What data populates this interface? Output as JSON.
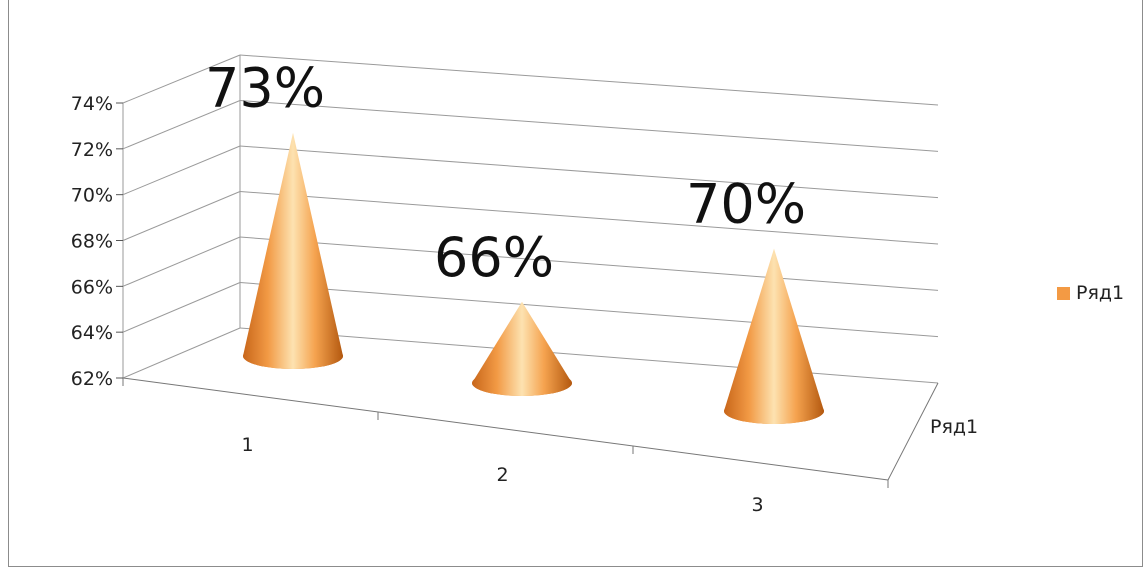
{
  "chart_data": {
    "type": "bar",
    "bar_shape": "cone-3d",
    "categories": [
      "1",
      "2",
      "3"
    ],
    "series": [
      {
        "name": "Ряд1",
        "values": [
          73,
          66,
          70
        ]
      }
    ],
    "data_labels": [
      "73%",
      "66%",
      "70%"
    ],
    "y_ticks": [
      "62%",
      "64%",
      "66%",
      "68%",
      "70%",
      "72%",
      "74%"
    ],
    "ylim": [
      62,
      74
    ],
    "y_step": 2,
    "depth_axis_label": "Ряд1",
    "grid": true,
    "legend_position": "right",
    "legend": [
      {
        "label": "Ряд1",
        "color": "#f39a44"
      }
    ],
    "colors": {
      "cone_light": "#fde2b0",
      "cone_mid": "#f5a34f",
      "cone_dark": "#b3580f",
      "grid": "#9a9a9a"
    }
  }
}
